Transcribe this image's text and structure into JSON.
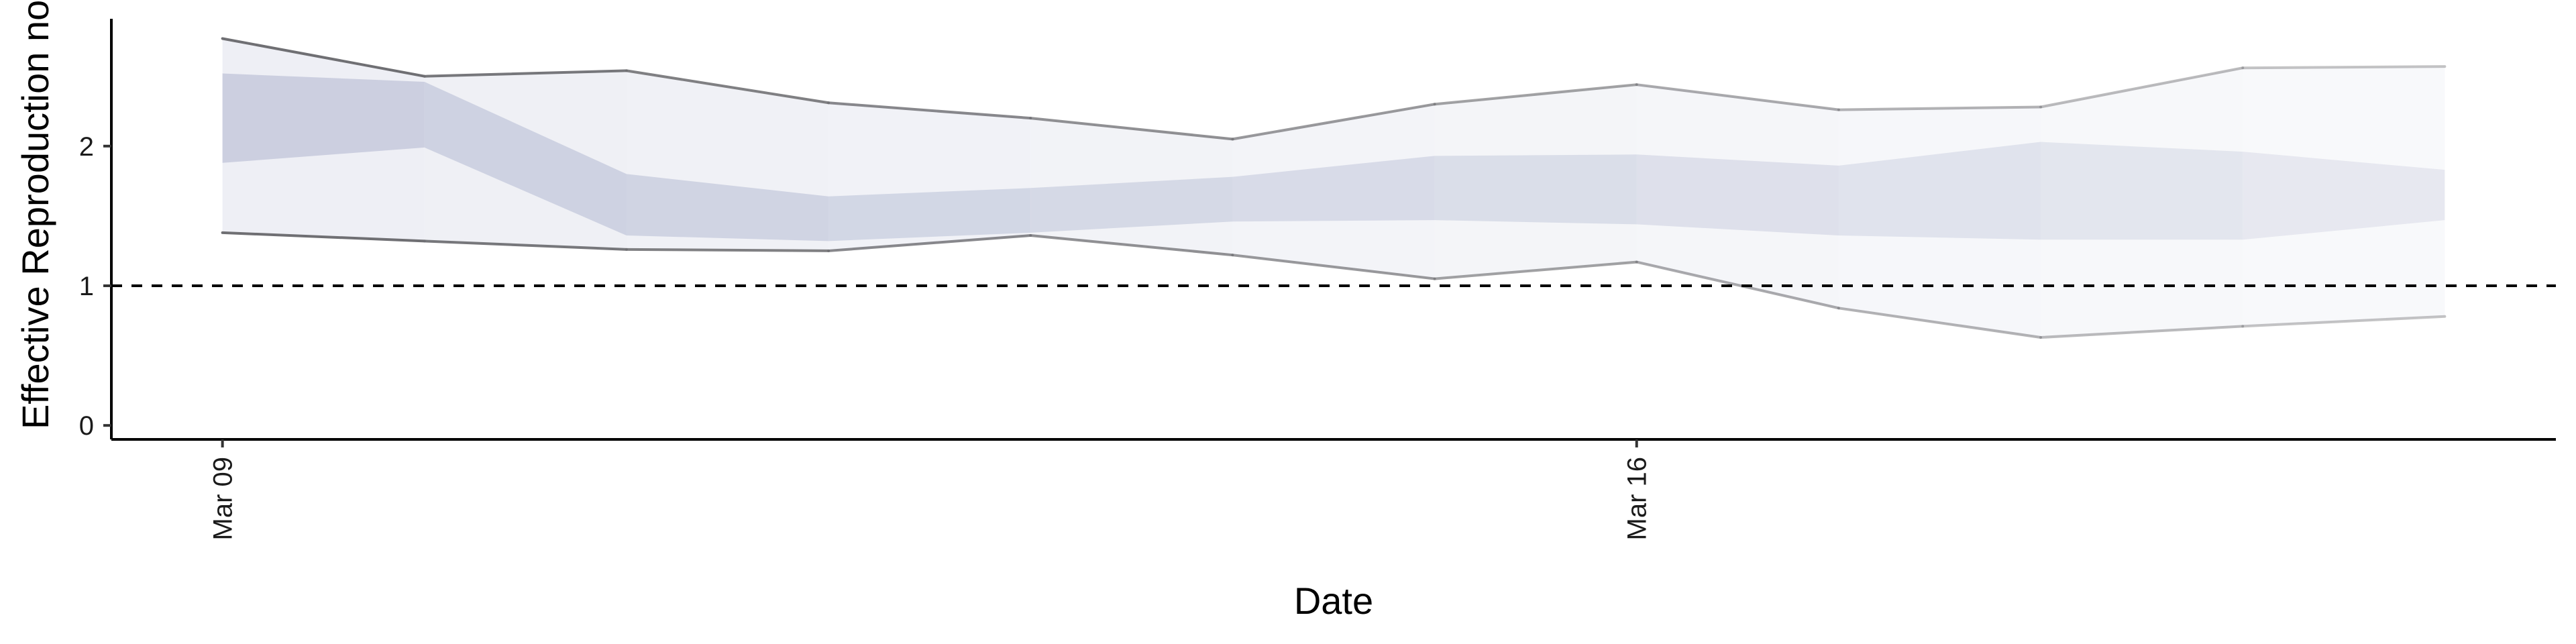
{
  "chart_data": {
    "type": "area",
    "title": "",
    "xlabel": "Date",
    "ylabel": "Effective Reproduction no.",
    "x_ticks": [
      {
        "day": 0,
        "label": "Mar 09"
      },
      {
        "day": 7,
        "label": "Mar 16"
      }
    ],
    "y_ticks": [
      0,
      1,
      2
    ],
    "ylim": [
      -0.1,
      2.95
    ],
    "xlim": [
      -0.55,
      11.55
    ],
    "reference_line": {
      "y": 1,
      "style": "dashed"
    },
    "grid": false,
    "series": [
      {
        "points": [
          {
            "date": "Mar 09",
            "lo90": 1.38,
            "lo50": 1.88,
            "hi50": 2.52,
            "hi90": 2.77
          },
          {
            "date": "Mar 10",
            "lo90": 1.32,
            "lo50": 1.99,
            "hi50": 2.46,
            "hi90": 2.5
          },
          {
            "date": "Mar 11",
            "lo90": 1.26,
            "lo50": 1.36,
            "hi50": 1.8,
            "hi90": 2.54
          },
          {
            "date": "Mar 12",
            "lo90": 1.25,
            "lo50": 1.32,
            "hi50": 1.64,
            "hi90": 2.31
          },
          {
            "date": "Mar 13",
            "lo90": 1.36,
            "lo50": 1.38,
            "hi50": 1.7,
            "hi90": 2.2
          },
          {
            "date": "Mar 14",
            "lo90": 1.22,
            "lo50": 1.46,
            "hi50": 1.78,
            "hi90": 2.05
          },
          {
            "date": "Mar 15",
            "lo90": 1.05,
            "lo50": 1.47,
            "hi50": 1.93,
            "hi90": 2.3
          },
          {
            "date": "Mar 16",
            "lo90": 1.17,
            "lo50": 1.44,
            "hi50": 1.94,
            "hi90": 2.44
          },
          {
            "date": "Mar 17",
            "lo90": 0.84,
            "lo50": 1.36,
            "hi50": 1.86,
            "hi90": 2.26
          },
          {
            "date": "Mar 18",
            "lo90": 0.63,
            "lo50": 1.33,
            "hi50": 2.03,
            "hi90": 2.28
          },
          {
            "date": "Mar 19",
            "lo90": 0.71,
            "lo50": 1.33,
            "hi50": 1.96,
            "hi90": 2.56
          },
          {
            "date": "Mar 20",
            "lo90": 0.78,
            "lo50": 1.47,
            "hi50": 1.83,
            "hi90": 2.57
          }
        ]
      }
    ],
    "colors": {
      "band90": "#e3e4ee",
      "band50": "#b7bdd4",
      "bound_line": "#6f6f73",
      "axis": "#000000",
      "reference": "#000000"
    }
  }
}
